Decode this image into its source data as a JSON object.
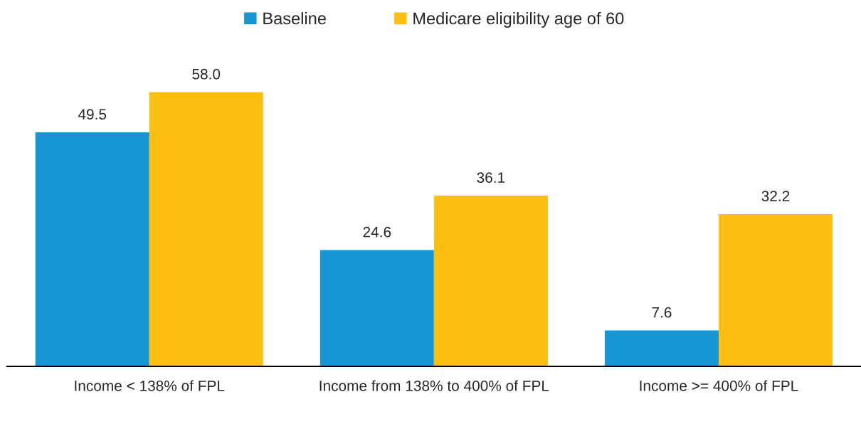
{
  "chart_data": {
    "type": "bar",
    "categories": [
      "Income < 138% of FPL",
      "Income from 138% to 400% of FPL",
      "Income >= 400% of FPL"
    ],
    "series": [
      {
        "name": "Baseline",
        "color": "#1696d2",
        "values": [
          49.5,
          24.6,
          7.6
        ],
        "value_labels": [
          "49.5",
          "24.6",
          "7.6"
        ]
      },
      {
        "name": "Medicare eligibility age of 60",
        "color": "#fdbf11",
        "values": [
          58.0,
          36.1,
          32.2
        ],
        "value_labels": [
          "58.0",
          "36.1",
          "32.2"
        ]
      }
    ],
    "legend": "top",
    "grid": false
  }
}
